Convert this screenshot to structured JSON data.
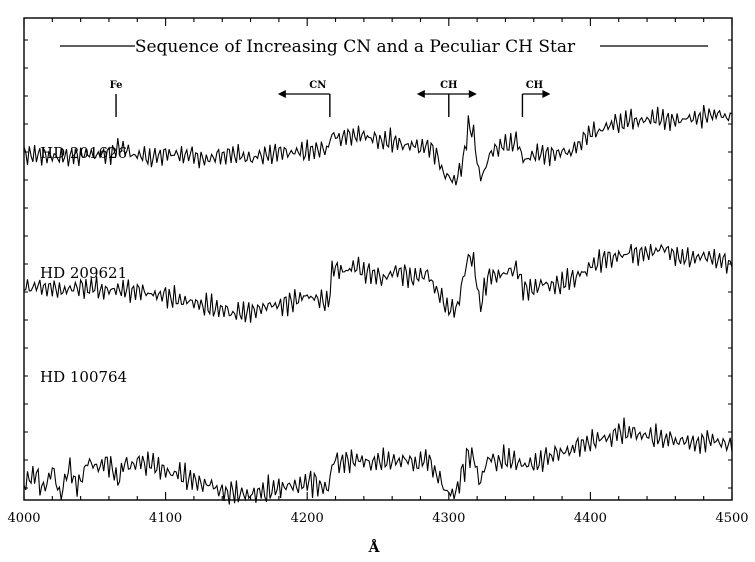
{
  "chart_data": {
    "type": "line",
    "title": "Sequence of Increasing CN and a Peculiar CH Star",
    "xlabel": "Å",
    "ylabel": "",
    "xlim": [
      4000,
      4500
    ],
    "xticks": [
      "4000",
      "4100",
      "4200",
      "4300",
      "4400",
      "4500"
    ],
    "grid": false,
    "features": [
      {
        "label": "Fe",
        "x": 4065,
        "arrow": "none"
      },
      {
        "label": "CN",
        "x": 4216,
        "arrow": "left"
      },
      {
        "label": "CH",
        "x": 4300,
        "arrow": "both"
      },
      {
        "label": "CH",
        "x": 4352,
        "arrow": "right"
      }
    ],
    "series": [
      {
        "name": "HD 201626",
        "x": [
          4000,
          4010,
          4020,
          4030,
          4040,
          4050,
          4060,
          4070,
          4080,
          4090,
          4100,
          4110,
          4120,
          4130,
          4140,
          4150,
          4160,
          4170,
          4180,
          4190,
          4200,
          4210,
          4215,
          4218,
          4225,
          4235,
          4245,
          4255,
          4265,
          4275,
          4285,
          4292,
          4298,
          4302,
          4306,
          4310,
          4314,
          4318,
          4322,
          4326,
          4330,
          4336,
          4342,
          4348,
          4352,
          4356,
          4362,
          4370,
          4380,
          4390,
          4400,
          4410,
          4420,
          4430,
          4440,
          4450,
          4460,
          4470,
          4480,
          4490,
          4500
        ],
        "y": [
          0.64,
          0.65,
          0.64,
          0.63,
          0.65,
          0.64,
          0.66,
          0.68,
          0.64,
          0.62,
          0.65,
          0.64,
          0.64,
          0.62,
          0.65,
          0.64,
          0.63,
          0.64,
          0.66,
          0.65,
          0.67,
          0.68,
          0.7,
          0.8,
          0.76,
          0.79,
          0.77,
          0.75,
          0.73,
          0.7,
          0.71,
          0.62,
          0.5,
          0.46,
          0.49,
          0.58,
          0.88,
          0.76,
          0.47,
          0.56,
          0.66,
          0.72,
          0.7,
          0.76,
          0.64,
          0.6,
          0.67,
          0.65,
          0.66,
          0.69,
          0.79,
          0.84,
          0.88,
          0.9,
          0.91,
          0.9,
          0.89,
          0.91,
          0.92,
          0.93,
          0.9
        ]
      },
      {
        "name": "HD 209621",
        "x": [
          4000,
          4010,
          4020,
          4030,
          4040,
          4050,
          4060,
          4070,
          4080,
          4090,
          4100,
          4110,
          4120,
          4130,
          4140,
          4150,
          4160,
          4170,
          4180,
          4190,
          4200,
          4210,
          4215,
          4218,
          4225,
          4235,
          4245,
          4255,
          4265,
          4275,
          4285,
          4292,
          4298,
          4302,
          4306,
          4310,
          4314,
          4318,
          4322,
          4326,
          4330,
          4336,
          4342,
          4348,
          4352,
          4356,
          4362,
          4370,
          4380,
          4390,
          4400,
          4410,
          4420,
          4430,
          4440,
          4450,
          4460,
          4470,
          4480,
          4490,
          4500
        ],
        "y": [
          0.42,
          0.43,
          0.41,
          0.4,
          0.42,
          0.41,
          0.4,
          0.41,
          0.39,
          0.37,
          0.36,
          0.34,
          0.31,
          0.29,
          0.27,
          0.25,
          0.26,
          0.28,
          0.3,
          0.33,
          0.36,
          0.34,
          0.3,
          0.55,
          0.52,
          0.56,
          0.5,
          0.47,
          0.53,
          0.48,
          0.51,
          0.4,
          0.28,
          0.26,
          0.3,
          0.46,
          0.64,
          0.58,
          0.28,
          0.45,
          0.52,
          0.49,
          0.53,
          0.55,
          0.42,
          0.4,
          0.42,
          0.44,
          0.45,
          0.48,
          0.56,
          0.6,
          0.62,
          0.65,
          0.64,
          0.67,
          0.63,
          0.61,
          0.62,
          0.6,
          0.58
        ]
      },
      {
        "name": "HD 100764",
        "x": [
          4000,
          4008,
          4014,
          4020,
          4026,
          4032,
          4038,
          4044,
          4050,
          4060,
          4066,
          4070,
          4080,
          4090,
          4100,
          4110,
          4120,
          4130,
          4140,
          4150,
          4160,
          4170,
          4180,
          4190,
          4200,
          4210,
          4215,
          4218,
          4225,
          4235,
          4245,
          4255,
          4265,
          4275,
          4285,
          4292,
          4298,
          4302,
          4306,
          4310,
          4314,
          4318,
          4322,
          4326,
          4330,
          4336,
          4342,
          4348,
          4352,
          4356,
          4362,
          4370,
          4380,
          4390,
          4400,
          4410,
          4420,
          4430,
          4440,
          4450,
          4460,
          4470,
          4480,
          4490,
          4500
        ],
        "y": [
          0.06,
          0.14,
          0.02,
          0.16,
          0.0,
          0.18,
          0.04,
          0.19,
          0.17,
          0.19,
          0.09,
          0.18,
          0.2,
          0.18,
          0.16,
          0.13,
          0.08,
          0.06,
          0.03,
          0.01,
          0.0,
          0.02,
          0.04,
          0.06,
          0.08,
          0.06,
          0.04,
          0.2,
          0.18,
          0.22,
          0.19,
          0.2,
          0.22,
          0.2,
          0.21,
          0.12,
          0.03,
          0.0,
          0.05,
          0.14,
          0.25,
          0.21,
          0.07,
          0.18,
          0.22,
          0.2,
          0.23,
          0.21,
          0.18,
          0.19,
          0.21,
          0.23,
          0.25,
          0.29,
          0.32,
          0.34,
          0.37,
          0.38,
          0.36,
          0.34,
          0.33,
          0.31,
          0.33,
          0.32,
          0.3
        ]
      }
    ]
  }
}
